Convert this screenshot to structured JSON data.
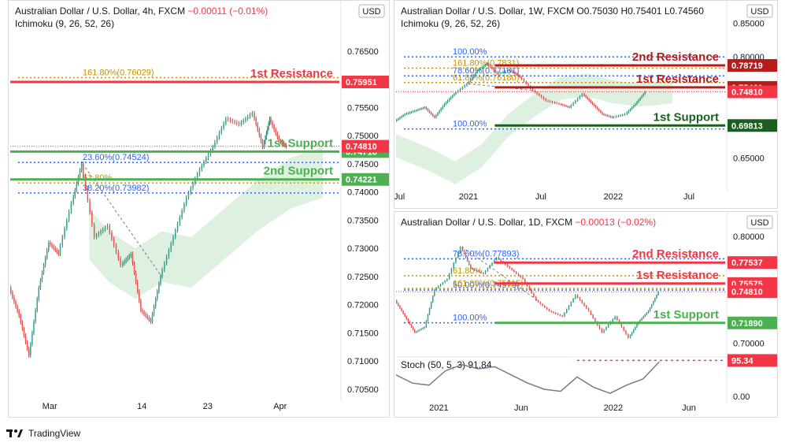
{
  "footer": {
    "brand": "TradingView",
    "logo_icon": "tradingview-logo-icon"
  },
  "charts": [
    {
      "id": "c4h",
      "header": {
        "title": "Australian Dollar / U.S. Dollar, 4h, FXCM",
        "change": "−0.00011 (−0.01%)",
        "ohlc": "",
        "indicator": "Ichimoku (9, 26, 52, 26)"
      },
      "currency": "USD",
      "ymin": 0.704,
      "ymax": 0.77,
      "yticks": [
        0.765,
        0.76,
        0.755,
        0.75,
        0.745,
        0.74,
        0.735,
        0.73,
        0.725,
        0.72,
        0.715,
        0.71,
        0.705
      ],
      "ytick_labels": [
        "0.76500",
        "0.76000",
        "0.75500",
        "0.75000",
        "0.74500",
        "0.74000",
        "0.73500",
        "0.73000",
        "0.72500",
        "0.72000",
        "0.71500",
        "0.71000",
        "0.70500"
      ],
      "xlabels": [
        "Mar",
        "14",
        "23",
        "Apr"
      ],
      "xpos": [
        0.12,
        0.4,
        0.6,
        0.82
      ],
      "levels": [
        {
          "text": "1st Resistance",
          "value": 0.75951,
          "tag": "0.75951",
          "color": "#f23645"
        },
        {
          "text": "1st Support",
          "value": 0.74716,
          "tag": "0.74716",
          "color": "#4caf50"
        },
        {
          "text": "2nd Support",
          "value": 0.74221,
          "tag": "0.74221",
          "color": "#4caf50"
        }
      ],
      "current": {
        "value": 0.7481,
        "tag": "0.74810",
        "color": "#f23645"
      },
      "fibs": [
        {
          "label": "161.80%(0.76029)",
          "value": 0.76029,
          "color": "#c49400"
        },
        {
          "label": "23.60%(0.74524)",
          "value": 0.74524,
          "color": "#2962ff"
        },
        {
          "label": "61.80%",
          "value": 0.7416,
          "color": "#c49400"
        },
        {
          "label": "38.20%(0.73982)",
          "value": 0.73982,
          "color": "#2962ff"
        }
      ],
      "price_path": [
        [
          0,
          0.723
        ],
        [
          0.03,
          0.718
        ],
        [
          0.06,
          0.711
        ],
        [
          0.09,
          0.723
        ],
        [
          0.12,
          0.731
        ],
        [
          0.15,
          0.729
        ],
        [
          0.19,
          0.738
        ],
        [
          0.22,
          0.745
        ],
        [
          0.26,
          0.732
        ],
        [
          0.3,
          0.734
        ],
        [
          0.34,
          0.727
        ],
        [
          0.37,
          0.729
        ],
        [
          0.4,
          0.719
        ],
        [
          0.43,
          0.717
        ],
        [
          0.46,
          0.725
        ],
        [
          0.5,
          0.732
        ],
        [
          0.54,
          0.739
        ],
        [
          0.58,
          0.744
        ],
        [
          0.62,
          0.748
        ],
        [
          0.66,
          0.753
        ],
        [
          0.7,
          0.752
        ],
        [
          0.74,
          0.754
        ],
        [
          0.77,
          0.748
        ],
        [
          0.79,
          0.753
        ],
        [
          0.82,
          0.749
        ],
        [
          0.84,
          0.7481
        ]
      ],
      "cloud": [
        [
          0.24,
          0.733
        ],
        [
          0.3,
          0.729
        ],
        [
          0.38,
          0.726
        ],
        [
          0.46,
          0.729
        ],
        [
          0.55,
          0.728
        ],
        [
          0.65,
          0.733
        ],
        [
          0.75,
          0.738
        ],
        [
          0.85,
          0.742
        ],
        [
          0.95,
          0.744
        ]
      ],
      "ycross": 0.7481
    },
    {
      "id": "c1w",
      "header": {
        "title": "Australian Dollar / U.S. Dollar, 1W, FXCM",
        "change": "",
        "ohlc": "O0.75030 H0.75401 L0.74560",
        "indicator": "Ichimoku (9, 26, 52, 26)"
      },
      "currency": "USD",
      "ymin": 0.605,
      "ymax": 0.855,
      "yticks": [
        0.85,
        0.8,
        0.75,
        0.7,
        0.65
      ],
      "ytick_labels": [
        "0.85000",
        "0.80000",
        "0.75000",
        "0.70000",
        "0.65000"
      ],
      "xlabels": [
        "Jul",
        "2021",
        "Jul",
        "2022",
        "Jul"
      ],
      "xpos": [
        0.01,
        0.22,
        0.44,
        0.66,
        0.89
      ],
      "levels": [
        {
          "text": "2nd Resistance",
          "value": 0.78719,
          "tag": "0.78719",
          "color": "#b71c1c"
        },
        {
          "text": "1st Resistance",
          "value": 0.75461,
          "tag": "0.75461",
          "color": "#b71c1c"
        },
        {
          "text": "1st Support",
          "value": 0.69813,
          "tag": "0.69813",
          "color": "#1b5e20"
        }
      ],
      "current": {
        "value": 0.7481,
        "tag": "0.74810",
        "color": "#f23645"
      },
      "fibs": [
        {
          "label": "100.00%",
          "value": 0.8,
          "color": "#2962ff"
        },
        {
          "label": "78.60%(0.77181)",
          "value": 0.77181,
          "color": "#2962ff"
        },
        {
          "label": "161.80%(0.7831)",
          "value": 0.7831,
          "color": "#c49400"
        },
        {
          "label": "61.80%(0.76180)",
          "value": 0.7618,
          "color": "#c49400"
        },
        {
          "label": "100.00%",
          "value": 0.693,
          "color": "#2962ff"
        }
      ],
      "price_path": [
        [
          0,
          0.705
        ],
        [
          0.03,
          0.715
        ],
        [
          0.06,
          0.72
        ],
        [
          0.09,
          0.725
        ],
        [
          0.12,
          0.71
        ],
        [
          0.15,
          0.73
        ],
        [
          0.18,
          0.745
        ],
        [
          0.22,
          0.76
        ],
        [
          0.25,
          0.78
        ],
        [
          0.28,
          0.79
        ],
        [
          0.31,
          0.775
        ],
        [
          0.35,
          0.78
        ],
        [
          0.38,
          0.77
        ],
        [
          0.42,
          0.75
        ],
        [
          0.46,
          0.735
        ],
        [
          0.5,
          0.73
        ],
        [
          0.53,
          0.725
        ],
        [
          0.57,
          0.745
        ],
        [
          0.6,
          0.73
        ],
        [
          0.63,
          0.715
        ],
        [
          0.66,
          0.71
        ],
        [
          0.7,
          0.715
        ],
        [
          0.73,
          0.73
        ],
        [
          0.76,
          0.7481
        ]
      ],
      "cloud": [
        [
          0.0,
          0.67
        ],
        [
          0.1,
          0.65
        ],
        [
          0.18,
          0.63
        ],
        [
          0.26,
          0.655
        ],
        [
          0.34,
          0.7
        ],
        [
          0.42,
          0.73
        ],
        [
          0.5,
          0.755
        ],
        [
          0.58,
          0.76
        ],
        [
          0.66,
          0.75
        ],
        [
          0.74,
          0.745
        ],
        [
          0.84,
          0.75
        ]
      ],
      "ycross": 0.7481
    },
    {
      "id": "c1d",
      "header": {
        "title": "Australian Dollar / U.S. Dollar, 1D, FXCM",
        "change": "−0.00013 (−0.02%)",
        "ohlc": "",
        "indicator": ""
      },
      "currency": "USD",
      "ymin": 0.69,
      "ymax": 0.805,
      "yticks": [
        0.8,
        0.75,
        0.7
      ],
      "ytick_labels": [
        "0.80000",
        "0.75000",
        "0.70000"
      ],
      "xlabels": [
        "2021",
        "Jun",
        "2022",
        "Jun"
      ],
      "xpos": [
        0.13,
        0.38,
        0.66,
        0.89
      ],
      "levels": [
        {
          "text": "2nd Resistance",
          "value": 0.77537,
          "tag": "0.77537",
          "color": "#f23645"
        },
        {
          "text": "1st Resistance",
          "value": 0.75575,
          "tag": "0.75575",
          "color": "#f23645"
        },
        {
          "text": "1st Support",
          "value": 0.7189,
          "tag": "0.71890",
          "color": "#4caf50"
        }
      ],
      "current": {
        "value": 0.7481,
        "tag": "0.74810",
        "color": "#f23645"
      },
      "fibs": [
        {
          "label": "78.60%(0.77893)",
          "value": 0.77893,
          "color": "#2962ff"
        },
        {
          "label": "61.80%",
          "value": 0.7631,
          "color": "#c49400"
        },
        {
          "label": "50.00%(0.74975)",
          "value": 0.74975,
          "color": "#2962ff"
        },
        {
          "label": "161.80%(0.75115)",
          "value": 0.75115,
          "color": "#c49400"
        },
        {
          "label": "100.00%",
          "value": 0.719,
          "color": "#2962ff"
        }
      ],
      "price_path": [
        [
          0,
          0.74
        ],
        [
          0.03,
          0.725
        ],
        [
          0.06,
          0.71
        ],
        [
          0.09,
          0.715
        ],
        [
          0.12,
          0.75
        ],
        [
          0.16,
          0.76
        ],
        [
          0.2,
          0.79
        ],
        [
          0.23,
          0.77
        ],
        [
          0.27,
          0.765
        ],
        [
          0.31,
          0.78
        ],
        [
          0.35,
          0.77
        ],
        [
          0.39,
          0.76
        ],
        [
          0.43,
          0.74
        ],
        [
          0.47,
          0.73
        ],
        [
          0.51,
          0.725
        ],
        [
          0.55,
          0.745
        ],
        [
          0.59,
          0.73
        ],
        [
          0.63,
          0.71
        ],
        [
          0.67,
          0.725
        ],
        [
          0.71,
          0.705
        ],
        [
          0.74,
          0.72
        ],
        [
          0.77,
          0.73
        ],
        [
          0.8,
          0.7481
        ]
      ],
      "cloud": [],
      "ycross": 0.7481,
      "stoch": {
        "label": "Stoch (50, 5, 3)",
        "value_label": "91.84",
        "tag": "95.34",
        "ticks": [
          "0.00"
        ],
        "path": [
          [
            0,
            60
          ],
          [
            0.05,
            40
          ],
          [
            0.1,
            35
          ],
          [
            0.15,
            70
          ],
          [
            0.2,
            85
          ],
          [
            0.25,
            75
          ],
          [
            0.3,
            80
          ],
          [
            0.35,
            60
          ],
          [
            0.4,
            40
          ],
          [
            0.45,
            25
          ],
          [
            0.5,
            20
          ],
          [
            0.55,
            55
          ],
          [
            0.6,
            30
          ],
          [
            0.65,
            15
          ],
          [
            0.7,
            35
          ],
          [
            0.75,
            50
          ],
          [
            0.8,
            92
          ]
        ]
      }
    }
  ],
  "chart_data": [
    {
      "type": "line",
      "title": "Australian Dollar / U.S. Dollar, 4h, FXCM",
      "ylim": [
        0.704,
        0.77
      ],
      "series": [
        {
          "name": "AUD/USD",
          "values": [
            0.723,
            0.718,
            0.711,
            0.723,
            0.731,
            0.729,
            0.738,
            0.745,
            0.732,
            0.734,
            0.727,
            0.729,
            0.719,
            0.717,
            0.725,
            0.732,
            0.739,
            0.744,
            0.748,
            0.753,
            0.752,
            0.754,
            0.748,
            0.753,
            0.749,
            0.7481
          ]
        }
      ],
      "annotations": [
        "1st Resistance 0.75951",
        "1st Support 0.74716",
        "2nd Support 0.74221",
        "161.80%(0.76029)",
        "23.60%(0.74524)",
        "61.80%",
        "38.20%(0.73982)"
      ]
    },
    {
      "type": "line",
      "title": "Australian Dollar / U.S. Dollar, 1W, FXCM",
      "ylim": [
        0.605,
        0.855
      ],
      "series": [
        {
          "name": "AUD/USD",
          "values": [
            0.705,
            0.715,
            0.72,
            0.725,
            0.71,
            0.73,
            0.745,
            0.76,
            0.78,
            0.79,
            0.775,
            0.78,
            0.77,
            0.75,
            0.735,
            0.73,
            0.725,
            0.745,
            0.73,
            0.715,
            0.71,
            0.715,
            0.73,
            0.7481
          ]
        }
      ],
      "annotations": [
        "2nd Resistance 0.78719",
        "1st Resistance 0.75461",
        "1st Support 0.69813"
      ]
    },
    {
      "type": "line",
      "title": "Australian Dollar / U.S. Dollar, 1D, FXCM",
      "ylim": [
        0.69,
        0.805
      ],
      "series": [
        {
          "name": "AUD/USD",
          "values": [
            0.74,
            0.725,
            0.71,
            0.715,
            0.75,
            0.76,
            0.79,
            0.77,
            0.765,
            0.78,
            0.77,
            0.76,
            0.74,
            0.73,
            0.725,
            0.745,
            0.73,
            0.71,
            0.725,
            0.705,
            0.72,
            0.73,
            0.7481
          ]
        }
      ],
      "annotations": [
        "2nd Resistance 0.77537",
        "1st Resistance 0.75575",
        "1st Support 0.71890",
        "Stoch (50, 5, 3) 91.84"
      ]
    }
  ]
}
